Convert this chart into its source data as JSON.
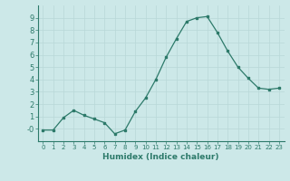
{
  "x": [
    0,
    1,
    2,
    3,
    4,
    5,
    6,
    7,
    8,
    9,
    10,
    11,
    12,
    13,
    14,
    15,
    16,
    17,
    18,
    19,
    20,
    21,
    22,
    23
  ],
  "y": [
    -0.1,
    -0.1,
    0.9,
    1.5,
    1.1,
    0.8,
    0.5,
    -0.4,
    -0.1,
    1.4,
    2.5,
    4.0,
    5.8,
    7.3,
    8.7,
    9.0,
    9.1,
    7.8,
    6.3,
    5.0,
    4.1,
    3.3,
    3.2,
    3.3
  ],
  "xlabel": "Humidex (Indice chaleur)",
  "ylim": [
    -1,
    10
  ],
  "xlim": [
    -0.5,
    23.5
  ],
  "bg_color": "#cce8e8",
  "line_color": "#2d7a6a",
  "grid_color": "#b8d8d8",
  "yticks": [
    0,
    1,
    2,
    3,
    4,
    5,
    6,
    7,
    8,
    9
  ],
  "ytick_labels": [
    "-0",
    "1",
    "2",
    "3",
    "4",
    "5",
    "6",
    "7",
    "8",
    "9"
  ],
  "xticks": [
    0,
    1,
    2,
    3,
    4,
    5,
    6,
    7,
    8,
    9,
    10,
    11,
    12,
    13,
    14,
    15,
    16,
    17,
    18,
    19,
    20,
    21,
    22,
    23
  ]
}
